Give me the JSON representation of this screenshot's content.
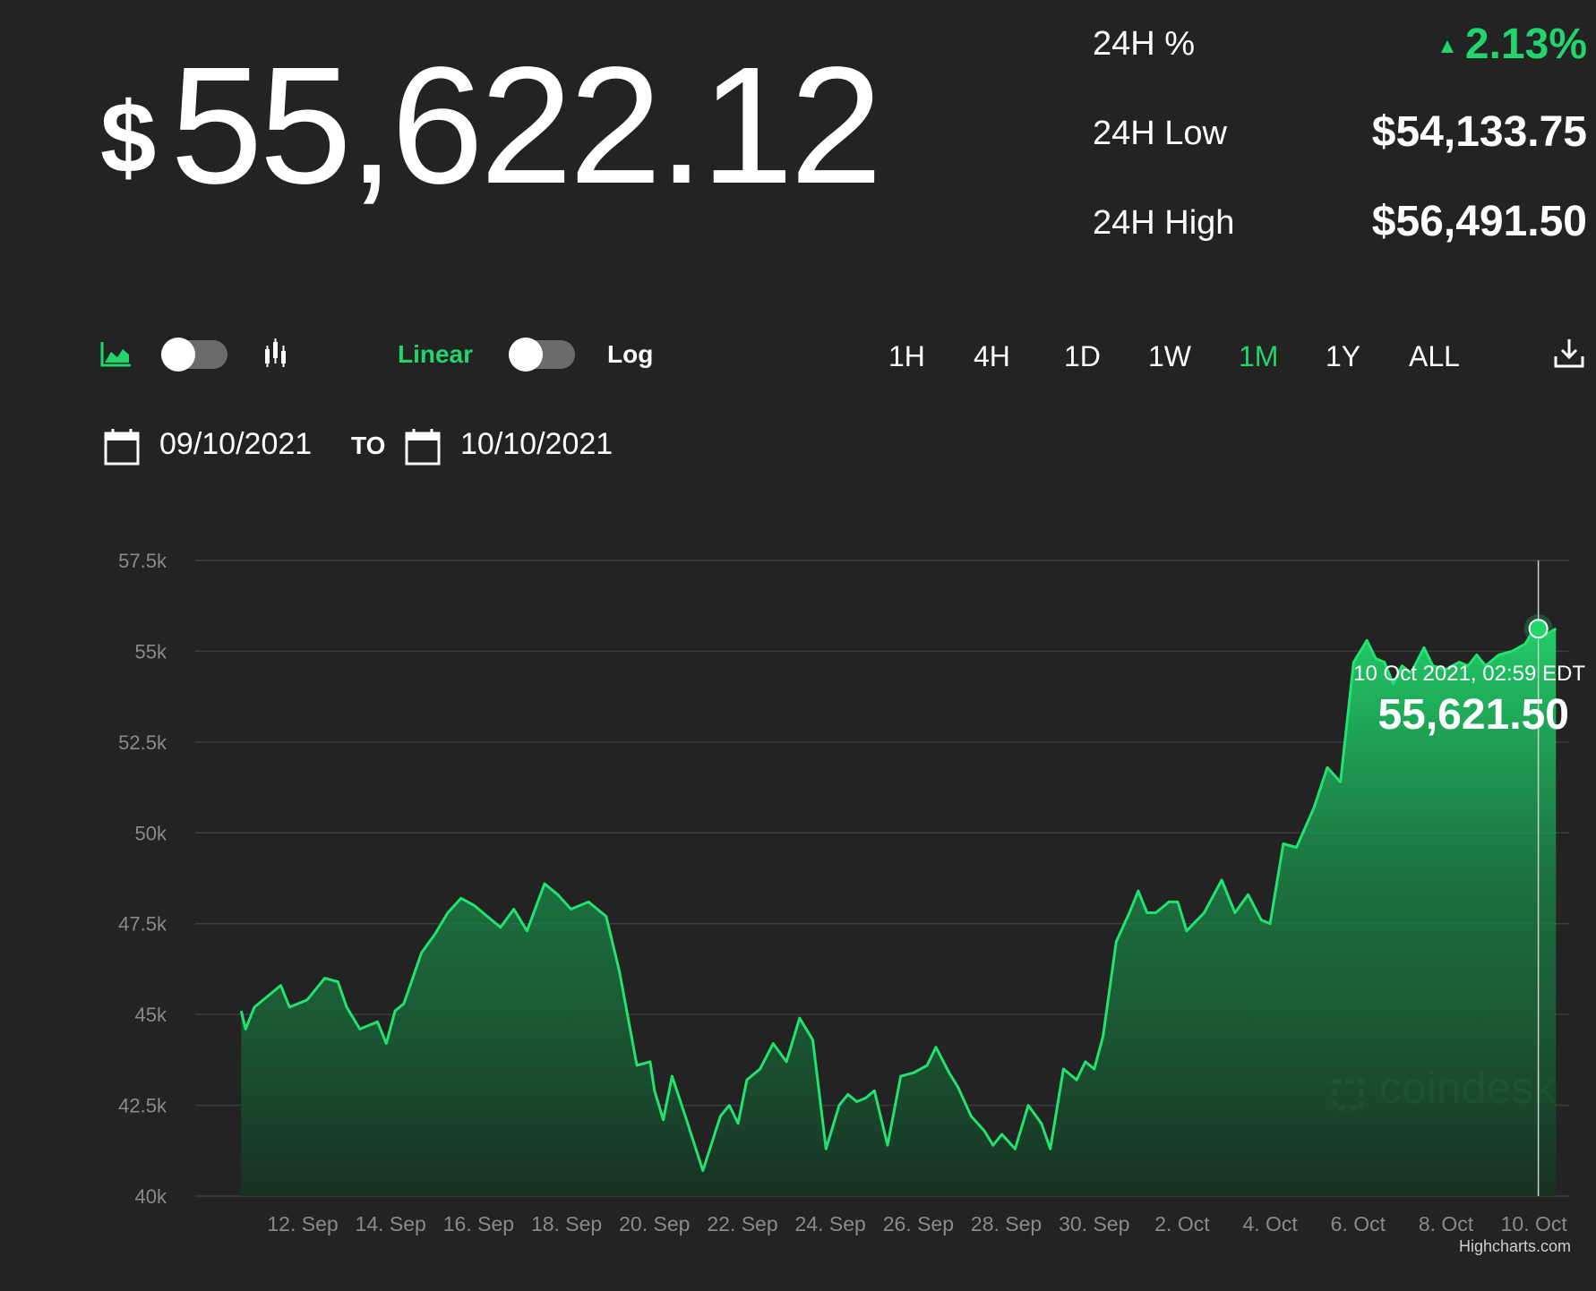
{
  "header": {
    "price_symbol": "$",
    "price_value": "55,622.12"
  },
  "stats": {
    "pct_label": "24H %",
    "pct_value": "2.13%",
    "low_label": "24H Low",
    "low_value": "$54,133.75",
    "high_label": "24H High",
    "high_value": "$56,491.50"
  },
  "toolbar": {
    "area_icon": "area-chart-icon",
    "candle_icon": "candlestick-icon",
    "linear_label": "Linear",
    "log_label": "Log",
    "ranges": [
      "1H",
      "4H",
      "1D",
      "1W",
      "1M",
      "1Y",
      "ALL"
    ],
    "active_range": "1M",
    "download_icon": "download-icon"
  },
  "dates": {
    "from": "09/10/2021",
    "to_label": "TO",
    "to": "10/10/2021",
    "calendar_icon": "calendar-icon"
  },
  "colors": {
    "background": "#232323",
    "accent": "#21d46b",
    "grid": "#3c3c3c"
  },
  "chart_data": {
    "type": "area",
    "yticks": [
      "57.5k",
      "55k",
      "52.5k",
      "50k",
      "47.5k",
      "45k",
      "42.5k",
      "40k"
    ],
    "ylim": [
      40000,
      57500
    ],
    "xticks": [
      "12. Sep",
      "14. Sep",
      "16. Sep",
      "18. Sep",
      "20. Sep",
      "22. Sep",
      "24. Sep",
      "26. Sep",
      "28. Sep",
      "30. Sep",
      "2. Oct",
      "4. Oct",
      "6. Oct",
      "8. Oct",
      "10. Oct"
    ],
    "x": [
      10.6,
      10.7,
      10.9,
      11.2,
      11.5,
      11.7,
      12.1,
      12.5,
      12.8,
      13.0,
      13.3,
      13.7,
      13.9,
      14.1,
      14.3,
      14.5,
      14.7,
      15.0,
      15.3,
      15.6,
      15.9,
      16.2,
      16.5,
      16.8,
      17.1,
      17.5,
      17.8,
      18.1,
      18.5,
      18.9,
      19.2,
      19.6,
      19.9,
      20.0,
      20.2,
      20.4,
      20.7,
      21.1,
      21.5,
      21.7,
      21.9,
      22.1,
      22.4,
      22.7,
      23.0,
      23.3,
      23.6,
      23.9,
      24.2,
      24.4,
      24.6,
      24.8,
      25.0,
      25.3,
      25.6,
      25.9,
      26.2,
      26.4,
      26.7,
      26.9,
      27.2,
      27.5,
      27.7,
      27.9,
      28.2,
      28.5,
      28.8,
      29.0,
      29.3,
      29.6,
      29.8,
      30.0,
      30.2,
      30.5,
      30.8,
      31.0,
      31.2,
      31.4,
      31.7,
      31.9,
      32.1,
      32.5,
      32.9,
      33.2,
      33.5,
      33.8,
      34.0,
      34.3,
      34.6,
      35.0,
      35.3,
      35.6,
      35.9,
      36.2,
      36.4,
      36.6,
      36.8,
      37.0,
      37.2,
      37.5,
      37.7,
      38.0,
      38.3,
      38.5,
      38.7,
      38.9,
      39.2,
      39.5,
      39.8,
      40.0,
      40.2,
      40.5
    ],
    "y": [
      45100,
      44600,
      45200,
      45500,
      45800,
      45200,
      45400,
      46000,
      45900,
      45200,
      44600,
      44800,
      44200,
      45100,
      45300,
      46000,
      46700,
      47200,
      47800,
      48200,
      48000,
      47700,
      47400,
      47900,
      47300,
      48600,
      48300,
      47900,
      48100,
      47700,
      46200,
      43600,
      43700,
      42900,
      42100,
      43300,
      42200,
      40700,
      42200,
      42500,
      42000,
      43200,
      43500,
      44200,
      43700,
      44900,
      44300,
      41300,
      42500,
      42800,
      42600,
      42700,
      42900,
      41400,
      43300,
      43400,
      43600,
      44100,
      43400,
      43000,
      42200,
      41800,
      41400,
      41700,
      41300,
      42500,
      42000,
      41300,
      43500,
      43200,
      43700,
      43500,
      44400,
      47000,
      47800,
      48400,
      47800,
      47800,
      48100,
      48100,
      47300,
      47800,
      48700,
      47800,
      48300,
      47600,
      47500,
      49700,
      49600,
      50700,
      51800,
      51400,
      54700,
      55300,
      54800,
      54700,
      54100,
      54600,
      54400,
      55100,
      54600,
      54500,
      54700,
      54600,
      54900,
      54600,
      54900,
      55000,
      55200,
      55600,
      55400,
      55621.5
    ],
    "tooltip": {
      "date": "10 Oct 2021, 02:59 EDT",
      "value": "55,621.50",
      "x": 40.1,
      "y": 55621.5
    },
    "xlim": [
      9.8,
      40.8
    ],
    "watermark": "coindesk",
    "credit": "Highcharts.com",
    "grid": true,
    "legend": "none"
  }
}
